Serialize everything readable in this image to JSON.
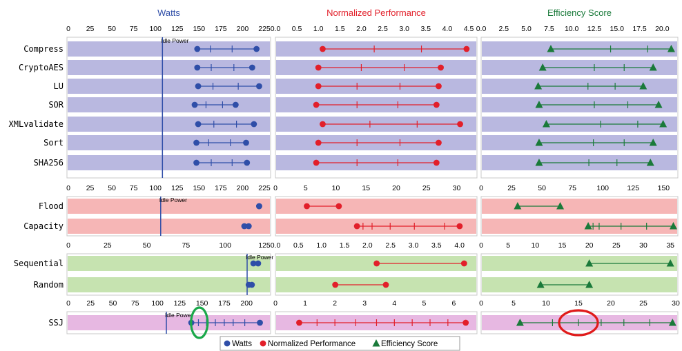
{
  "chart_data": {
    "type": "dumbbell-panel",
    "columns": [
      {
        "key": "watts",
        "title": "Watts",
        "color": "#2f4ea8",
        "marker": "circle"
      },
      {
        "key": "norm",
        "title": "Normalized Performance",
        "color": "#e21f2a",
        "marker": "circle"
      },
      {
        "key": "eff",
        "title": "Efficiency Score",
        "color": "#1a7a3a",
        "marker": "triangle"
      }
    ],
    "groups": [
      {
        "name": "cpu",
        "background": "#b9b8e0",
        "axes": {
          "watts": {
            "min": 0,
            "max": 225,
            "ticks": [
              "0",
              "25",
              "50",
              "75",
              "100",
              "125",
              "150",
              "175",
              "200",
              "225"
            ]
          },
          "norm": {
            "min": 0,
            "max": 4.5,
            "ticks": [
              "0.0",
              "0.5",
              "1.0",
              "1.5",
              "2.0",
              "2.5",
              "3.0",
              "3.5",
              "4.0",
              "4.5"
            ]
          },
          "eff": {
            "min": 0,
            "max": 21.5,
            "ticks": [
              "0.0",
              "2.5",
              "5.0",
              "7.5",
              "10.0",
              "12.5",
              "15.0",
              "17.5",
              "20.0"
            ]
          }
        },
        "idle_power": {
          "label": "Idle Power",
          "value": 108
        },
        "rows": [
          {
            "label": "Compress",
            "watts": [
              148,
              163,
              188,
              216
            ],
            "norm": [
              1.1,
              2.3,
              3.4,
              4.45
            ],
            "eff": [
              7.7,
              14.3,
              18.4,
              21.0
            ]
          },
          {
            "label": "CryptoAES",
            "watts": [
              148,
              164,
              190,
              211
            ],
            "norm": [
              1.0,
              2.0,
              3.0,
              3.85
            ],
            "eff": [
              6.8,
              12.5,
              15.8,
              19.0
            ]
          },
          {
            "label": "LU",
            "watts": [
              149,
              166,
              195,
              219
            ],
            "norm": [
              1.0,
              1.9,
              2.9,
              3.8
            ],
            "eff": [
              6.3,
              11.8,
              14.8,
              17.9
            ]
          },
          {
            "label": "SOR",
            "watts": [
              145,
              158,
              177,
              192
            ],
            "norm": [
              0.95,
              1.9,
              2.85,
              3.75
            ],
            "eff": [
              6.4,
              12.5,
              16.2,
              19.6
            ]
          },
          {
            "label": "XMLvalidate",
            "watts": [
              149,
              167,
              193,
              213
            ],
            "norm": [
              1.1,
              2.2,
              3.3,
              4.3
            ],
            "eff": [
              7.2,
              13.2,
              17.3,
              20.1
            ]
          },
          {
            "label": "Sort",
            "watts": [
              147,
              161,
              186,
              204
            ],
            "norm": [
              1.0,
              1.9,
              2.9,
              3.8
            ],
            "eff": [
              6.4,
              12.4,
              15.8,
              19.0
            ]
          },
          {
            "label": "SHA256",
            "watts": [
              147,
              164,
              188,
              205
            ],
            "norm": [
              0.95,
              1.9,
              2.85,
              3.75
            ],
            "eff": [
              6.4,
              11.9,
              15.0,
              18.7
            ]
          }
        ]
      },
      {
        "name": "memory",
        "background": "#f6b6b6",
        "axes": {
          "watts": {
            "min": 0,
            "max": 225,
            "ticks": [
              "0",
              "25",
              "50",
              "75",
              "100",
              "125",
              "150",
              "175",
              "200",
              "225"
            ]
          },
          "norm": {
            "min": 0,
            "max": 32,
            "ticks": [
              "0",
              "5",
              "10",
              "15",
              "20",
              "25",
              "30"
            ]
          },
          "eff": {
            "min": 0,
            "max": 160,
            "ticks": [
              "0",
              "25",
              "50",
              "75",
              "100",
              "125",
              "150"
            ]
          }
        },
        "idle_power": {
          "label": "Idle Power",
          "value": 106
        },
        "rows": [
          {
            "label": "Flood",
            "watts": [
              219,
              219
            ],
            "norm": [
              5.2,
              10.5
            ],
            "eff": [
              30,
              65
            ]
          },
          {
            "label": "Capacity",
            "watts": [
              202,
              207
            ],
            "norm": [
              13.5,
              14.5,
              16.0,
              19.0,
              23.0,
              28.0,
              30.5
            ],
            "eff": [
              88,
              92,
              97,
              115,
              136,
              158
            ]
          }
        ]
      },
      {
        "name": "storage",
        "background": "#c6e3b0",
        "axes": {
          "watts": {
            "min": 0,
            "max": 125,
            "ticks": [
              "0",
              "25",
              "50",
              "75",
              "100",
              "125"
            ]
          },
          "norm": {
            "min": 0,
            "max": 4.2,
            "ticks": [
              "0.0",
              "0.5",
              "1.0",
              "1.5",
              "2.0",
              "2.5",
              "3.0",
              "3.5",
              "4.0"
            ]
          },
          "eff": {
            "min": 0,
            "max": 36,
            "ticks": [
              "0",
              "5",
              "10",
              "15",
              "20",
              "25",
              "30",
              "35"
            ]
          }
        },
        "idle_power": {
          "label": "Idle Power",
          "value": 114
        },
        "rows": [
          {
            "label": "Sequential",
            "watts": [
              118,
              121
            ],
            "norm": [
              2.2,
              4.1
            ],
            "eff": [
              20,
              35
            ]
          },
          {
            "label": "Random",
            "watts": [
              115,
              117
            ],
            "norm": [
              1.3,
              2.4
            ],
            "eff": [
              11,
              20
            ]
          }
        ]
      },
      {
        "name": "ssj",
        "background": "#e7b8e2",
        "axes": {
          "watts": {
            "min": 0,
            "max": 220,
            "ticks": [
              "0",
              "25",
              "50",
              "75",
              "100",
              "125",
              "150",
              "175",
              "200"
            ]
          },
          "norm": {
            "min": 0,
            "max": 6.5,
            "ticks": [
              "0",
              "1",
              "2",
              "3",
              "4",
              "5",
              "6"
            ]
          },
          "eff": {
            "min": 0,
            "max": 30,
            "ticks": [
              "0",
              "5",
              "10",
              "15",
              "20",
              "25",
              "30"
            ]
          }
        },
        "idle_power": {
          "label": "Idle Power",
          "value": 110
        },
        "rows": [
          {
            "label": "SSJ",
            "watts": [
              138,
              146,
              155,
              165,
              175,
              185,
              198,
              215
            ],
            "norm": [
              0.8,
              1.4,
              2.0,
              2.7,
              3.4,
              4.0,
              4.6,
              5.2,
              5.8,
              6.4
            ],
            "eff": [
              6.0,
              11.0,
              15.0,
              18.5,
              22.0,
              26.0,
              29.5
            ]
          }
        ]
      }
    ],
    "legend": {
      "position": "bottom-center",
      "items": [
        "Watts",
        "Normalized Performance",
        "Efficiency Score"
      ]
    },
    "annotations": [
      {
        "type": "ellipse",
        "color": "#1aa84a",
        "column": "watts",
        "group": "ssj",
        "at_value": 147
      },
      {
        "type": "ellipse",
        "color": "#e01a1a",
        "column": "eff",
        "group": "ssj",
        "at_value": 15
      }
    ]
  }
}
